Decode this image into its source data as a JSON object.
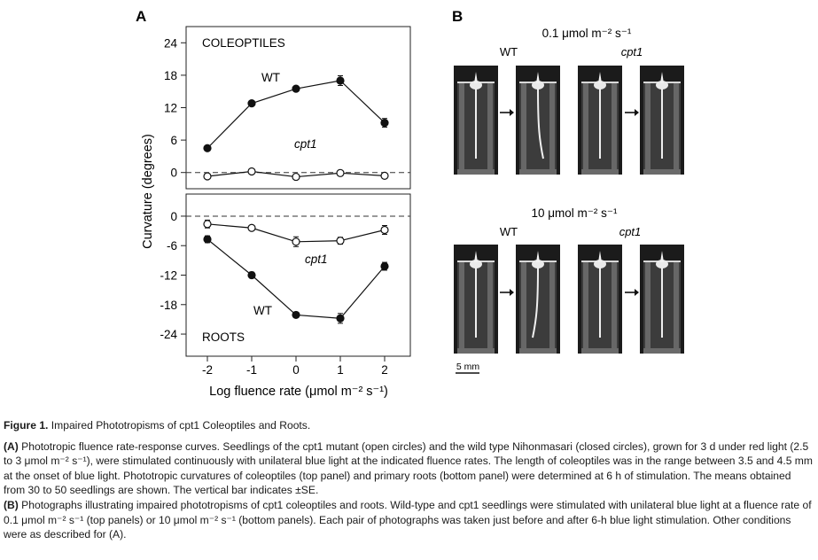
{
  "panel_a_letter": "A",
  "panel_b_letter": "B",
  "chart_data": [
    {
      "type": "scatter",
      "panel": "top",
      "label": "COLEOPTILES",
      "x": [
        -2,
        -1,
        0,
        1,
        2
      ],
      "ylim": [
        -3,
        27
      ],
      "yticks": [
        "24",
        "18",
        "12",
        "6",
        "0"
      ],
      "series": [
        {
          "name": "WT",
          "marker": "filled",
          "values": [
            4.5,
            12.8,
            15.5,
            17.0,
            9.2
          ],
          "errors": [
            0.4,
            0.5,
            0.5,
            0.9,
            0.8
          ]
        },
        {
          "name": "cpt1",
          "marker": "open",
          "values": [
            -0.7,
            0.2,
            -0.8,
            -0.1,
            -0.6
          ],
          "errors": [
            0.3,
            0.3,
            0.3,
            0.3,
            0.3
          ]
        }
      ]
    },
    {
      "type": "scatter",
      "panel": "bottom",
      "label": "ROOTS",
      "x": [
        -2,
        -1,
        0,
        1,
        2
      ],
      "ylim": [
        -28.5,
        4.5
      ],
      "yticks": [
        "0",
        "-6",
        "-12",
        "-18",
        "-24"
      ],
      "xticks": [
        "-2",
        "-1",
        "0",
        "1",
        "2"
      ],
      "ylabel": "Curvature (degrees)",
      "xlabel": "Log fluence rate (μmol m⁻² s⁻¹)",
      "series": [
        {
          "name": "WT",
          "marker": "filled",
          "values": [
            -4.7,
            -12.0,
            -20.1,
            -20.8,
            -10.2
          ],
          "errors": [
            0.7,
            0.6,
            0.5,
            1.0,
            0.8
          ]
        },
        {
          "name": "cpt1",
          "marker": "open",
          "values": [
            -1.6,
            -2.4,
            -5.2,
            -5.0,
            -2.8
          ],
          "errors": [
            0.8,
            0.4,
            1.0,
            0.7,
            0.9
          ]
        }
      ]
    }
  ],
  "panel_b": {
    "top_fluence": "0.1 μmol m⁻² s⁻¹",
    "bottom_fluence": "10 μmol m⁻² s⁻¹",
    "wt_label": "WT",
    "cpt1_label": "cpt1",
    "scale_bar": "5 mm"
  },
  "caption": {
    "title_prefix": "Figure 1.",
    "title_text": "Impaired Phototropisms of cpt1 Coleoptiles and Roots.",
    "para_a_label": "(A)",
    "para_a_text": "Phototropic fluence rate-response curves. Seedlings of the cpt1 mutant (open circles) and the wild type Nihonmasari (closed circles), grown for 3 d under red light (2.5 to 3 μmol m⁻² s⁻¹), were stimulated continuously with unilateral blue light at the indicated fluence rates. The length of coleoptiles was in the range between 3.5 and 4.5 mm at the onset of blue light. Phototropic curvatures of coleoptiles (top panel) and primary roots (bottom panel) were determined at 6 h of stimulation. The means obtained from 30 to 50 seedlings are shown. The vertical bar indicates ±SE.",
    "para_b_label": "(B)",
    "para_b_text": "Photographs illustrating impaired phototropisms of cpt1 coleoptiles and roots. Wild-type and cpt1 seedlings were stimulated with unilateral blue light at a fluence rate of 0.1 μmol m⁻² s⁻¹ (top panels) or 10 μmol m⁻² s⁻¹ (bottom panels). Each pair of photographs was taken just before and after 6-h blue light stimulation. Other conditions were as described for (A)."
  }
}
